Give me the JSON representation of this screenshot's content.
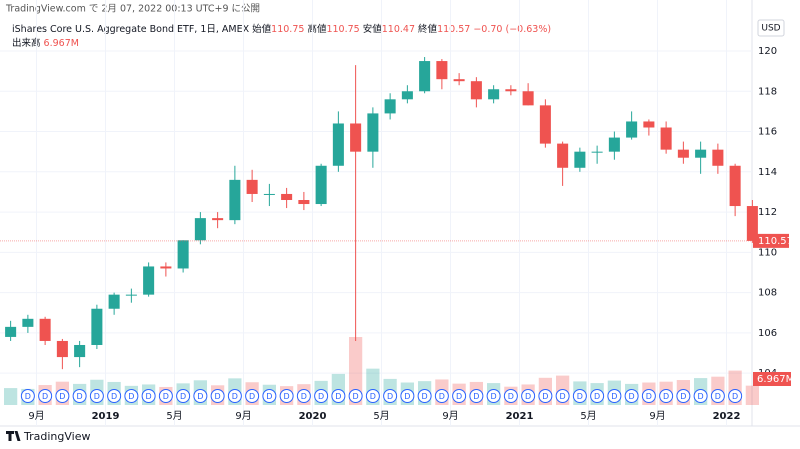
{
  "header": "TradingView.com で 2月 07, 2022 00:13 UTC+9 に公開",
  "footer": "TradingView",
  "chart_data": {
    "type": "candlestick",
    "currency": "USD",
    "legend": {
      "symbol": "iShares Core U.S. Aggregate Bond ETF, 1日, AMEX",
      "open_label": "始値",
      "open": 110.75,
      "high_label": "高値",
      "high": 110.75,
      "low_label": "安値",
      "low": 110.47,
      "close_label": "終値",
      "close": 110.57,
      "change": {
        "value": -0.7,
        "label": "−0.70"
      },
      "change_pct": {
        "value": -0.63,
        "label": "(−0.63%)"
      }
    },
    "categories": [
      null,
      null,
      "9月",
      null,
      null,
      null,
      "2019",
      null,
      null,
      null,
      "5月",
      null,
      null,
      null,
      "9月",
      null,
      null,
      null,
      "2020",
      null,
      null,
      null,
      "5月",
      null,
      null,
      null,
      "9月",
      null,
      null,
      null,
      "2021",
      null,
      null,
      null,
      "5月",
      null,
      null,
      null,
      "9月",
      null,
      null,
      null,
      "2022",
      null
    ],
    "series": [
      {
        "name": "iShares Core U.S. Aggregate Bond ETF",
        "up_color": "#26a69a",
        "down_color": "#ef5350",
        "open": [
          105.8,
          106.3,
          106.7,
          105.6,
          104.8,
          105.4,
          107.2,
          107.9,
          107.9,
          109.3,
          109.2,
          110.6,
          111.7,
          111.6,
          113.6,
          112.9,
          112.9,
          112.6,
          112.4,
          114.3,
          116.4,
          115.0,
          116.9,
          117.6,
          118.0,
          119.5,
          118.6,
          118.5,
          117.6,
          118.1,
          118.0,
          117.3,
          115.4,
          114.2,
          115.0,
          115.0,
          115.7,
          116.5,
          116.2,
          115.1,
          114.7,
          115.1,
          114.3,
          112.3
        ],
        "high": [
          106.6,
          106.9,
          106.8,
          105.7,
          105.6,
          107.4,
          108.0,
          108.2,
          109.5,
          109.5,
          110.6,
          112.0,
          112.0,
          114.3,
          114.1,
          113.4,
          113.2,
          113.0,
          114.4,
          117.0,
          119.3,
          117.2,
          117.9,
          118.3,
          119.7,
          119.6,
          118.9,
          118.7,
          118.3,
          118.3,
          118.4,
          117.6,
          115.5,
          115.2,
          115.3,
          116.0,
          117.0,
          116.6,
          116.5,
          115.5,
          115.5,
          115.4,
          114.4,
          112.6
        ],
        "low": [
          105.6,
          106.0,
          105.4,
          104.2,
          104.3,
          105.2,
          106.9,
          107.5,
          107.8,
          108.8,
          109.0,
          110.4,
          111.2,
          111.4,
          112.5,
          112.3,
          112.2,
          112.1,
          112.3,
          114.0,
          105.6,
          114.2,
          116.6,
          117.4,
          117.9,
          118.1,
          118.3,
          117.2,
          117.4,
          117.8,
          117.3,
          115.2,
          113.3,
          114.0,
          114.4,
          114.6,
          115.6,
          115.8,
          114.9,
          114.4,
          113.9,
          113.9,
          111.8,
          110.47
        ],
        "close": [
          106.3,
          106.7,
          105.6,
          104.8,
          105.4,
          107.2,
          107.9,
          107.9,
          109.3,
          109.2,
          110.6,
          111.7,
          111.6,
          113.6,
          112.9,
          112.9,
          112.6,
          112.4,
          114.3,
          116.4,
          115.0,
          116.9,
          117.6,
          118.0,
          119.5,
          118.6,
          118.5,
          117.6,
          118.1,
          118.0,
          117.3,
          115.4,
          114.2,
          115.0,
          115.0,
          115.7,
          116.5,
          116.2,
          115.1,
          114.7,
          115.1,
          114.3,
          112.3,
          110.57
        ]
      }
    ],
    "volume": {
      "name": "出来高",
      "values": [
        6.1,
        5.8,
        7.2,
        8.4,
        7.6,
        9.1,
        8.3,
        6.9,
        7.4,
        6.5,
        7.8,
        8.9,
        7.1,
        9.6,
        8.2,
        7.3,
        6.8,
        7.5,
        8.7,
        11.2,
        24.5,
        13.1,
        9.4,
        8.1,
        8.6,
        9.2,
        7.7,
        8.3,
        7.9,
        6.6,
        7.4,
        9.8,
        10.6,
        8.5,
        7.9,
        8.8,
        7.6,
        8.1,
        8.4,
        9.0,
        9.7,
        10.2,
        12.4,
        6.967
      ],
      "value_labels": [
        null,
        null,
        null,
        null,
        null,
        null,
        null,
        null,
        null,
        null,
        null,
        null,
        null,
        null,
        null,
        null,
        null,
        null,
        null,
        null,
        null,
        null,
        null,
        null,
        null,
        null,
        null,
        null,
        null,
        null,
        null,
        null,
        null,
        null,
        null,
        null,
        null,
        null,
        null,
        null,
        null,
        null,
        null,
        "6.967M"
      ]
    },
    "dividend_marker": "D",
    "ylim": [
      102.42,
      121.34
    ],
    "yticks": [
      104,
      106,
      108,
      110,
      112,
      114,
      116,
      118,
      120
    ],
    "grid": true
  }
}
